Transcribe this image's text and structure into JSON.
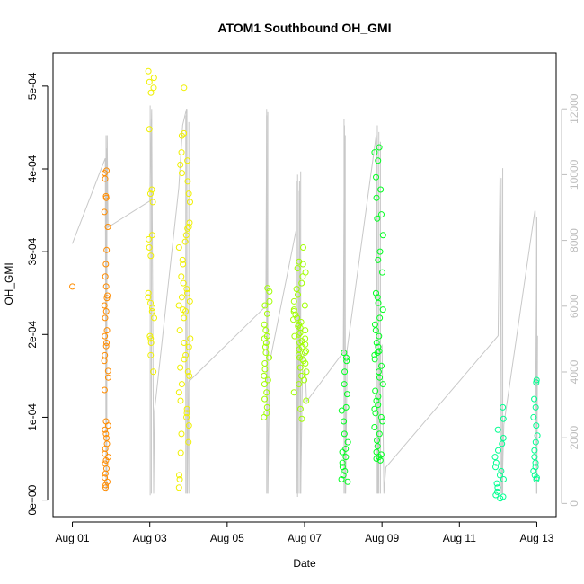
{
  "chart_data": {
    "type": "scatter",
    "title": "ATOM1 Southbound OH_GMI",
    "xlabel": "Date",
    "ylabel": "OH_GMI",
    "x_ticks": [
      "Aug 01",
      "Aug 03",
      "Aug 05",
      "Aug 07",
      "Aug 09",
      "Aug 11",
      "Aug 13"
    ],
    "x_tick_days": [
      1,
      3,
      5,
      7,
      9,
      11,
      13
    ],
    "xlim_days": [
      0.5,
      13.5
    ],
    "y_ticks": [
      "0e+00",
      "1e-04",
      "2e-04",
      "3e-04",
      "4e-04",
      "5e-04"
    ],
    "y_tick_values": [
      0,
      0.0001,
      0.0002,
      0.0003,
      0.0004,
      0.0005
    ],
    "ylim": [
      -2e-05,
      0.00054
    ],
    "y2_ticks": [
      "0",
      "2000",
      "4000",
      "6000",
      "8000",
      "10000",
      "12000"
    ],
    "y2_tick_values": [
      0,
      2000,
      4000,
      6000,
      8000,
      10000,
      12000
    ],
    "y2lim": [
      -400,
      13700
    ],
    "secondary_series_color": "#c8c8c8",
    "flight_colors": [
      "#ff8c00",
      "#f0f000",
      "#a0ff00",
      "#00ff20",
      "#00ff90"
    ],
    "flights": [
      {
        "day_range": [
          1.82,
          1.93
        ],
        "color": "#ff8c00",
        "oh_values": [
          0.000258,
          0.000398,
          0.000395,
          0.000388,
          0.000367,
          0.000365,
          0.000348,
          0.00033,
          0.000302,
          0.000285,
          0.00027,
          0.000247,
          0.000244,
          0.000235,
          0.000228,
          0.00022,
          0.000205,
          0.000198,
          0.00019,
          0.000186,
          0.000175,
          0.000168,
          0.000156,
          0.000148,
          0.000133,
          9.5e-05,
          9e-05,
          8.5e-05,
          8e-05,
          7.5e-05,
          6.8e-05,
          6.2e-05,
          5.6e-05,
          5.2e-05,
          4.8e-05,
          4.4e-05,
          3.8e-05,
          3.2e-05,
          2.7e-05,
          2.2e-05,
          1.8e-05,
          1.5e-05
        ],
        "extra_point": {
          "day": 1.0,
          "oh": 0.000258
        }
      },
      {
        "day_range": [
          2.95,
          3.12
        ],
        "color": "#f0f000",
        "oh_values": [
          0.000518,
          0.00051,
          0.000505,
          0.000498,
          0.000492,
          0.000448,
          0.000375,
          0.00037,
          0.00036,
          0.00032,
          0.000315,
          0.000305,
          0.000295,
          0.00025,
          0.000245,
          0.000238,
          0.000232,
          0.000228,
          0.00022,
          0.000198,
          0.000195,
          0.00019,
          0.000175,
          0.000155
        ]
      },
      {
        "day_range": [
          3.75,
          4.05
        ],
        "color": "#f0f000",
        "oh_values": [
          0.000498,
          0.000443,
          0.00044,
          0.00042,
          0.00041,
          0.000405,
          0.000395,
          0.000385,
          0.00037,
          0.00036,
          0.000335,
          0.00033,
          0.000328,
          0.00032,
          0.000312,
          0.000305,
          0.00029,
          0.000285,
          0.00027,
          0.000262,
          0.000255,
          0.00025,
          0.000245,
          0.00024,
          0.000235,
          0.00023,
          0.000228,
          0.00022,
          0.000205,
          0.000195,
          0.00019,
          0.000185,
          0.000175,
          0.00017,
          0.00016,
          0.000155,
          0.00015,
          0.00014,
          0.00013,
          0.00012,
          0.00011,
          0.000105,
          0.0001,
          9e-05,
          8e-05,
          7e-05,
          5.7e-05,
          3e-05,
          2.5e-05,
          1.5e-05
        ]
      },
      {
        "day_range": [
          5.95,
          6.12
        ],
        "color": "#a0ff00",
        "oh_values": [
          0.000256,
          0.000252,
          0.00024,
          0.000235,
          0.000225,
          0.000212,
          0.000205,
          0.000198,
          0.000195,
          0.00019,
          0.000185,
          0.000178,
          0.000172,
          0.000165,
          0.000158,
          0.00015,
          0.000145,
          0.00014,
          0.00013,
          0.000122,
          0.000112,
          0.000105,
          0.0001
        ]
      },
      {
        "day_range": [
          6.7,
          7.05
        ],
        "color": "#a0ff00",
        "oh_values": [
          0.000305,
          0.000288,
          0.000285,
          0.00028,
          0.000275,
          0.00027,
          0.000262,
          0.000255,
          0.000248,
          0.00024,
          0.000235,
          0.00023,
          0.000228,
          0.000224,
          0.00022,
          0.000218,
          0.000215,
          0.000212,
          0.00021,
          0.000208,
          0.000205,
          0.000202,
          0.0002,
          0.000198,
          0.000195,
          0.000192,
          0.00019,
          0.000188,
          0.000185,
          0.000182,
          0.00018,
          0.000178,
          0.000175,
          0.000172,
          0.00017,
          0.000168,
          0.000165,
          0.00016,
          0.000155,
          0.00015,
          0.000145,
          0.00014,
          0.00013,
          0.00012,
          0.00011,
          9.8e-05
        ]
      },
      {
        "day_range": [
          7.95,
          8.12
        ],
        "color": "#00ff20",
        "oh_values": [
          0.000178,
          0.000172,
          0.000168,
          0.000155,
          0.00014,
          0.000128,
          0.000112,
          0.000108,
          9.5e-05,
          8e-05,
          7e-05,
          6.2e-05,
          5.8e-05,
          5.2e-05,
          4.5e-05,
          4e-05,
          3.5e-05,
          3e-05,
          2.5e-05,
          2.2e-05
        ]
      },
      {
        "day_range": [
          8.8,
          9.05
        ],
        "color": "#00ff20",
        "oh_values": [
          0.000426,
          0.00042,
          0.00041,
          0.00039,
          0.000375,
          0.000365,
          0.000345,
          0.00034,
          0.00032,
          0.0003,
          0.00029,
          0.000275,
          0.00025,
          0.000245,
          0.000238,
          0.00023,
          0.00022,
          0.000212,
          0.000205,
          0.000198,
          0.00019,
          0.000185,
          0.00018,
          0.000178,
          0.000175,
          0.00017,
          0.000162,
          0.000155,
          0.000148,
          0.00014,
          0.000132,
          0.000125,
          0.00012,
          0.000115,
          0.00011,
          0.000105,
          0.0001,
          9.5e-05,
          8.8e-05,
          8e-05,
          7.2e-05,
          6.5e-05,
          5.8e-05,
          5.5e-05,
          5.2e-05,
          5e-05,
          4.8e-05
        ]
      },
      {
        "day_range": [
          11.9,
          12.15
        ],
        "color": "#00ff90",
        "oh_values": [
          0.000112,
          9.8e-05,
          8.5e-05,
          7.5e-05,
          6.8e-05,
          6e-05,
          5.2e-05,
          4.5e-05,
          4e-05,
          3.5e-05,
          3e-05,
          2.5e-05,
          2e-05,
          1.5e-05,
          1e-05,
          6e-06,
          4e-06,
          2e-06
        ]
      },
      {
        "day_range": [
          12.9,
          13.02
        ],
        "color": "#00ff90",
        "oh_values": [
          0.000145,
          0.000142,
          0.000122,
          0.000112,
          0.0001,
          9e-05,
          7.8e-05,
          7e-05,
          6e-05,
          5.2e-05,
          4.5e-05,
          4e-05,
          3.5e-05,
          3e-05,
          2.7e-05,
          2.5e-05
        ]
      }
    ],
    "altitude_track": [
      [
        1.0,
        7900
      ],
      [
        1.85,
        10500
      ],
      [
        1.87,
        400
      ],
      [
        1.9,
        11200
      ],
      [
        1.92,
        8400
      ],
      [
        3.0,
        9200
      ],
      [
        3.05,
        12000
      ],
      [
        3.1,
        300
      ],
      [
        3.12,
        2800
      ],
      [
        3.75,
        9600
      ],
      [
        3.85,
        11500
      ],
      [
        3.95,
        12000
      ],
      [
        3.97,
        300
      ],
      [
        4.0,
        3700
      ],
      [
        6.0,
        6000
      ],
      [
        6.02,
        11800
      ],
      [
        6.05,
        300
      ],
      [
        6.1,
        4300
      ],
      [
        6.78,
        8300
      ],
      [
        6.82,
        200
      ],
      [
        6.87,
        9800
      ],
      [
        6.9,
        300
      ],
      [
        6.95,
        4400
      ],
      [
        7.0,
        4600
      ],
      [
        7.05,
        3100
      ],
      [
        8.0,
        4600
      ],
      [
        8.03,
        11500
      ],
      [
        8.06,
        300
      ],
      [
        8.1,
        4700
      ],
      [
        8.85,
        11200
      ],
      [
        8.9,
        300
      ],
      [
        8.95,
        4700
      ],
      [
        9.0,
        4800
      ],
      [
        9.05,
        300
      ],
      [
        9.1,
        1100
      ],
      [
        12.0,
        5100
      ],
      [
        12.05,
        10000
      ],
      [
        12.1,
        300
      ],
      [
        12.15,
        2400
      ],
      [
        12.95,
        8900
      ],
      [
        13.0,
        300
      ],
      [
        13.02,
        5100
      ]
    ],
    "altitude_spikes": [
      {
        "day": 1.87,
        "low": 350,
        "high": 11200
      },
      {
        "day": 1.89,
        "low": 450,
        "high": 10800
      },
      {
        "day": 3.01,
        "low": 250,
        "high": 12100
      },
      {
        "day": 3.04,
        "low": 300,
        "high": 11700
      },
      {
        "day": 3.93,
        "low": 300,
        "high": 11800
      },
      {
        "day": 3.96,
        "low": 300,
        "high": 12000
      },
      {
        "day": 4.01,
        "low": 300,
        "high": 11600
      },
      {
        "day": 6.02,
        "low": 300,
        "high": 12000
      },
      {
        "day": 6.05,
        "low": 300,
        "high": 11900
      },
      {
        "day": 6.79,
        "low": 300,
        "high": 9800
      },
      {
        "day": 6.82,
        "low": 300,
        "high": 10000
      },
      {
        "day": 6.86,
        "low": 300,
        "high": 9500
      },
      {
        "day": 6.9,
        "low": 300,
        "high": 10100
      },
      {
        "day": 8.02,
        "low": 300,
        "high": 11700
      },
      {
        "day": 8.05,
        "low": 300,
        "high": 11200
      },
      {
        "day": 8.85,
        "low": 300,
        "high": 11100
      },
      {
        "day": 8.88,
        "low": 300,
        "high": 11500
      },
      {
        "day": 8.92,
        "low": 300,
        "high": 11300
      },
      {
        "day": 8.96,
        "low": 300,
        "high": 11000
      },
      {
        "day": 12.05,
        "low": 300,
        "high": 9000
      },
      {
        "day": 12.08,
        "low": 300,
        "high": 9900
      },
      {
        "day": 12.12,
        "low": 300,
        "high": 10200
      },
      {
        "day": 12.96,
        "low": 300,
        "high": 8900
      },
      {
        "day": 13.0,
        "low": 300,
        "high": 8700
      }
    ]
  }
}
